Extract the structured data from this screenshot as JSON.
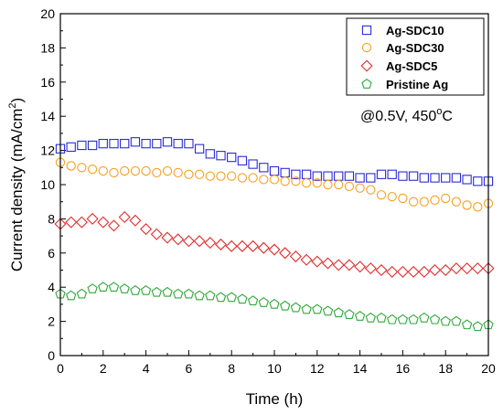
{
  "chart_data": {
    "type": "scatter",
    "xlabel": "Time (h)",
    "ylabel_main": "Current density (mA/cm",
    "ylabel_sup": "2",
    "ylabel_end": ")",
    "xlim": [
      0,
      20
    ],
    "ylim": [
      0,
      20
    ],
    "xticks": [
      "0",
      "2",
      "4",
      "6",
      "8",
      "10",
      "12",
      "14",
      "16",
      "18",
      "20"
    ],
    "yticks": [
      "0",
      "2",
      "4",
      "6",
      "8",
      "10",
      "12",
      "14",
      "16",
      "18",
      "20"
    ],
    "annotation": {
      "main": "@0.5V, 450",
      "sup": "o",
      "end": "C"
    },
    "legend_position": "top-right",
    "series": [
      {
        "name": "Ag-SDC10",
        "color": "#2b2bd6",
        "marker": "square",
        "x": [
          0,
          0.5,
          1,
          1.5,
          2,
          2.5,
          3,
          3.5,
          4,
          4.5,
          5,
          5.5,
          6,
          6.5,
          7,
          7.5,
          8,
          8.5,
          9,
          9.5,
          10,
          10.5,
          11,
          11.5,
          12,
          12.5,
          13,
          13.5,
          14,
          14.5,
          15,
          15.5,
          16,
          16.5,
          17,
          17.5,
          18,
          18.5,
          19,
          19.5,
          20
        ],
        "values": [
          12.1,
          12.2,
          12.3,
          12.3,
          12.4,
          12.4,
          12.4,
          12.5,
          12.4,
          12.4,
          12.5,
          12.4,
          12.4,
          12.1,
          11.8,
          11.7,
          11.6,
          11.4,
          11.2,
          11.0,
          10.8,
          10.7,
          10.6,
          10.6,
          10.5,
          10.5,
          10.5,
          10.5,
          10.4,
          10.4,
          10.6,
          10.6,
          10.5,
          10.5,
          10.4,
          10.4,
          10.4,
          10.4,
          10.3,
          10.2,
          10.2
        ]
      },
      {
        "name": "Ag-SDC30",
        "color": "#f5a020",
        "marker": "circle",
        "x": [
          0,
          0.5,
          1,
          1.5,
          2,
          2.5,
          3,
          3.5,
          4,
          4.5,
          5,
          5.5,
          6,
          6.5,
          7,
          7.5,
          8,
          8.5,
          9,
          9.5,
          10,
          10.5,
          11,
          11.5,
          12,
          12.5,
          13,
          13.5,
          14,
          14.5,
          15,
          15.5,
          16,
          16.5,
          17,
          17.5,
          18,
          18.5,
          19,
          19.5,
          20
        ],
        "values": [
          11.3,
          11.1,
          11.0,
          10.9,
          10.8,
          10.7,
          10.8,
          10.8,
          10.8,
          10.7,
          10.8,
          10.7,
          10.6,
          10.6,
          10.5,
          10.5,
          10.5,
          10.4,
          10.4,
          10.3,
          10.3,
          10.2,
          10.2,
          10.1,
          10.1,
          10.0,
          10.0,
          9.9,
          9.8,
          9.7,
          9.4,
          9.3,
          9.2,
          9.0,
          9.0,
          9.1,
          9.2,
          9.0,
          8.8,
          8.7,
          8.9
        ]
      },
      {
        "name": "Ag-SDC5",
        "color": "#e22b2b",
        "marker": "diamond",
        "x": [
          0,
          0.5,
          1,
          1.5,
          2,
          2.5,
          3,
          3.5,
          4,
          4.5,
          5,
          5.5,
          6,
          6.5,
          7,
          7.5,
          8,
          8.5,
          9,
          9.5,
          10,
          10.5,
          11,
          11.5,
          12,
          12.5,
          13,
          13.5,
          14,
          14.5,
          15,
          15.5,
          16,
          16.5,
          17,
          17.5,
          18,
          18.5,
          19,
          19.5,
          20
        ],
        "values": [
          7.7,
          7.8,
          7.8,
          8.0,
          7.8,
          7.6,
          8.1,
          7.9,
          7.4,
          7.1,
          6.9,
          6.8,
          6.7,
          6.7,
          6.6,
          6.5,
          6.4,
          6.4,
          6.4,
          6.3,
          6.2,
          6.0,
          5.8,
          5.6,
          5.5,
          5.4,
          5.3,
          5.3,
          5.2,
          5.1,
          5.0,
          4.9,
          4.9,
          4.9,
          4.9,
          5.0,
          5.0,
          5.1,
          5.1,
          5.1,
          5.1
        ]
      },
      {
        "name": "Pristine Ag",
        "color": "#2fa83a",
        "marker": "pentagon",
        "x": [
          0,
          0.5,
          1,
          1.5,
          2,
          2.5,
          3,
          3.5,
          4,
          4.5,
          5,
          5.5,
          6,
          6.5,
          7,
          7.5,
          8,
          8.5,
          9,
          9.5,
          10,
          10.5,
          11,
          11.5,
          12,
          12.5,
          13,
          13.5,
          14,
          14.5,
          15,
          15.5,
          16,
          16.5,
          17,
          17.5,
          18,
          18.5,
          19,
          19.5,
          20
        ],
        "values": [
          3.6,
          3.5,
          3.6,
          3.9,
          4.0,
          4.0,
          3.9,
          3.8,
          3.8,
          3.7,
          3.7,
          3.6,
          3.6,
          3.5,
          3.5,
          3.4,
          3.4,
          3.3,
          3.2,
          3.1,
          3.0,
          2.9,
          2.8,
          2.7,
          2.7,
          2.6,
          2.5,
          2.4,
          2.3,
          2.2,
          2.2,
          2.1,
          2.1,
          2.1,
          2.2,
          2.1,
          2.0,
          2.0,
          1.8,
          1.7,
          1.8
        ]
      }
    ]
  }
}
